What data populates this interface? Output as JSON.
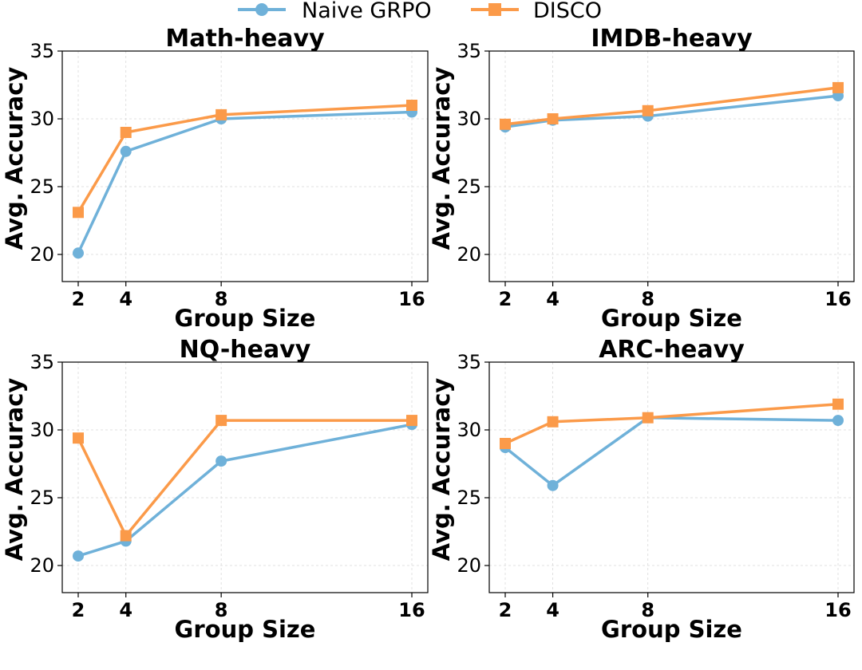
{
  "legend": {
    "naive_label": "Naive GRPO",
    "disco_label": "DISCO"
  },
  "colors": {
    "naive": "#6fb1d9",
    "disco": "#fb9a49"
  },
  "chart_data": [
    {
      "type": "line",
      "title": "Math-heavy",
      "xlabel": "Group Size",
      "ylabel": "Avg. Accuracy",
      "x": [
        2,
        4,
        8,
        16
      ],
      "xticks": [
        "2",
        "4",
        "8",
        "16"
      ],
      "yticks": [
        "20",
        "25",
        "30",
        "35"
      ],
      "ylim": [
        18,
        35
      ],
      "grid": true,
      "series": [
        {
          "name": "Naive GRPO",
          "marker": "circle",
          "values": [
            20.1,
            27.6,
            30.0,
            30.5
          ]
        },
        {
          "name": "DISCO",
          "marker": "square",
          "values": [
            23.1,
            29.0,
            30.3,
            31.0
          ]
        }
      ]
    },
    {
      "type": "line",
      "title": "IMDB-heavy",
      "xlabel": "Group Size",
      "ylabel": "Avg. Accuracy",
      "x": [
        2,
        4,
        8,
        16
      ],
      "xticks": [
        "2",
        "4",
        "8",
        "16"
      ],
      "yticks": [
        "20",
        "25",
        "30",
        "35"
      ],
      "ylim": [
        18,
        35
      ],
      "grid": true,
      "series": [
        {
          "name": "Naive GRPO",
          "marker": "circle",
          "values": [
            29.4,
            29.9,
            30.2,
            31.7
          ]
        },
        {
          "name": "DISCO",
          "marker": "square",
          "values": [
            29.6,
            30.0,
            30.6,
            32.3
          ]
        }
      ]
    },
    {
      "type": "line",
      "title": "NQ-heavy",
      "xlabel": "Group Size",
      "ylabel": "Avg. Accuracy",
      "x": [
        2,
        4,
        8,
        16
      ],
      "xticks": [
        "2",
        "4",
        "8",
        "16"
      ],
      "yticks": [
        "20",
        "25",
        "30",
        "35"
      ],
      "ylim": [
        18,
        35
      ],
      "grid": true,
      "series": [
        {
          "name": "Naive GRPO",
          "marker": "circle",
          "values": [
            20.7,
            21.8,
            27.7,
            30.4
          ]
        },
        {
          "name": "DISCO",
          "marker": "square",
          "values": [
            29.4,
            22.2,
            30.7,
            30.7
          ]
        }
      ]
    },
    {
      "type": "line",
      "title": "ARC-heavy",
      "xlabel": "Group Size",
      "ylabel": "Avg. Accuracy",
      "x": [
        2,
        4,
        8,
        16
      ],
      "xticks": [
        "2",
        "4",
        "8",
        "16"
      ],
      "yticks": [
        "20",
        "25",
        "30",
        "35"
      ],
      "ylim": [
        18,
        35
      ],
      "grid": true,
      "series": [
        {
          "name": "Naive GRPO",
          "marker": "circle",
          "values": [
            28.7,
            25.9,
            30.9,
            30.7
          ]
        },
        {
          "name": "DISCO",
          "marker": "square",
          "values": [
            29.0,
            30.6,
            30.9,
            31.9
          ]
        }
      ]
    }
  ]
}
